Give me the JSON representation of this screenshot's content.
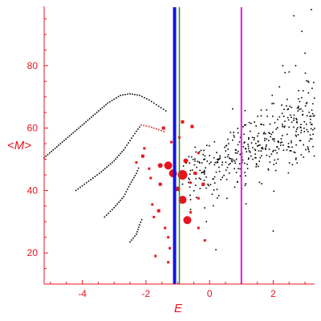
{
  "chart_data": {
    "type": "scatter",
    "xlabel": "E",
    "ylabel": "<M>",
    "xlim": [
      -5.2,
      3.3
    ],
    "ylim": [
      10,
      99
    ],
    "x_ticks": [
      -4,
      -2,
      0,
      2
    ],
    "x_tick_labels": [
      "-4",
      "-2",
      "0",
      "2"
    ],
    "y_ticks": [
      20,
      40,
      60,
      80
    ],
    "y_tick_labels": [
      "20",
      "40",
      "60",
      "80"
    ],
    "grid": false,
    "legend": "none",
    "colors": {
      "axis": "#e8141d",
      "black_points": "#000000",
      "red_points": "#e8141d",
      "line_blue": "#1414e6",
      "line_green": "#2a8a2a",
      "line_magenta": "#e01ce0"
    },
    "vertical_lines": [
      {
        "x": -1.1,
        "color": "#1414e6",
        "width": 4
      },
      {
        "x": -0.95,
        "color": "#2a8a2a",
        "width": 1.5
      },
      {
        "x": 1.0,
        "color": "#e01ce0",
        "width": 2
      }
    ],
    "curves": [
      {
        "color": "#000000",
        "points": [
          [
            -5.2,
            50.5
          ],
          [
            -4.8,
            54
          ],
          [
            -4.4,
            57.5
          ],
          [
            -4.0,
            61
          ],
          [
            -3.6,
            64.5
          ],
          [
            -3.2,
            68
          ],
          [
            -2.8,
            70.5
          ],
          [
            -2.5,
            71
          ],
          [
            -2.2,
            70.5
          ],
          [
            -1.9,
            69
          ],
          [
            -1.6,
            67
          ],
          [
            -1.3,
            65
          ]
        ]
      },
      {
        "color": "#000000",
        "points": [
          [
            -4.2,
            40
          ],
          [
            -3.8,
            43
          ],
          [
            -3.4,
            46
          ],
          [
            -3.0,
            49.5
          ],
          [
            -2.7,
            53
          ],
          [
            -2.5,
            56
          ],
          [
            -2.3,
            59
          ],
          [
            -2.15,
            61
          ]
        ]
      },
      {
        "color": "#e8141d",
        "points": [
          [
            -2.15,
            61
          ],
          [
            -1.9,
            60.5
          ],
          [
            -1.6,
            59.5
          ],
          [
            -1.35,
            58.5
          ]
        ]
      },
      {
        "color": "#000000",
        "points": [
          [
            -3.3,
            31.5
          ],
          [
            -3.0,
            34.5
          ],
          [
            -2.7,
            38
          ],
          [
            -2.5,
            42
          ],
          [
            -2.3,
            45.5
          ],
          [
            -2.2,
            48
          ]
        ]
      },
      {
        "color": "#000000",
        "points": [
          [
            -2.5,
            23.5
          ],
          [
            -2.3,
            26
          ],
          [
            -2.2,
            29
          ],
          [
            -2.1,
            31.5
          ]
        ]
      }
    ],
    "red_points": [
      {
        "x": -1.3,
        "y": 48,
        "r": 5
      },
      {
        "x": -1.15,
        "y": 45.5,
        "r": 5
      },
      {
        "x": -0.85,
        "y": 45,
        "r": 6
      },
      {
        "x": -0.85,
        "y": 37,
        "r": 5
      },
      {
        "x": -0.7,
        "y": 30.5,
        "r": 5
      },
      {
        "x": -1.55,
        "y": 48,
        "r": 3
      },
      {
        "x": -0.75,
        "y": 49.5,
        "r": 3
      },
      {
        "x": -1.0,
        "y": 40.5,
        "r": 3
      },
      {
        "x": -1.55,
        "y": 42,
        "r": 2
      },
      {
        "x": -1.6,
        "y": 33.5,
        "r": 2
      },
      {
        "x": -0.45,
        "y": 45.5,
        "r": 2
      },
      {
        "x": -0.2,
        "y": 42,
        "r": 2
      },
      {
        "x": -0.55,
        "y": 60.5,
        "r": 2
      },
      {
        "x": -2.1,
        "y": 51,
        "r": 2
      },
      {
        "x": -1.45,
        "y": 60,
        "r": 2
      },
      {
        "x": -0.85,
        "y": 62,
        "r": 2
      },
      {
        "x": -1.2,
        "y": 55.5,
        "r": 1.5
      },
      {
        "x": -1.9,
        "y": 47,
        "r": 1.5
      },
      {
        "x": -1.85,
        "y": 44,
        "r": 1.5
      },
      {
        "x": -1.8,
        "y": 35.5,
        "r": 1.5
      },
      {
        "x": -1.75,
        "y": 31.5,
        "r": 1.5
      },
      {
        "x": -1.4,
        "y": 28,
        "r": 1.5
      },
      {
        "x": -1.3,
        "y": 25,
        "r": 1.5
      },
      {
        "x": -1.25,
        "y": 21.5,
        "r": 1.5
      },
      {
        "x": -1.3,
        "y": 17,
        "r": 1.5
      },
      {
        "x": -0.6,
        "y": 33,
        "r": 1.5
      },
      {
        "x": -0.35,
        "y": 28,
        "r": 1.5
      },
      {
        "x": -0.15,
        "y": 24,
        "r": 1.5
      },
      {
        "x": -1.7,
        "y": 19,
        "r": 1.5
      },
      {
        "x": -2.3,
        "y": 49,
        "r": 1.5
      },
      {
        "x": -2.05,
        "y": 53.5,
        "r": 1.5
      },
      {
        "x": -0.35,
        "y": 52,
        "r": 1.5
      },
      {
        "x": -0.95,
        "y": 57,
        "r": 1.5
      },
      {
        "x": -0.35,
        "y": 37.5,
        "r": 1.5
      },
      {
        "x": -0.6,
        "y": 42.5,
        "r": 1.5
      }
    ],
    "black_cloud": {
      "count": 420,
      "x_range": [
        -0.9,
        3.3
      ],
      "trend": {
        "x0": -0.5,
        "y0": 44,
        "x1": 3.0,
        "y1": 63
      },
      "spread": 7,
      "seed": 7
    },
    "black_extra_points": [
      [
        2.65,
        96
      ],
      [
        2.9,
        91
      ],
      [
        3.2,
        98
      ],
      [
        2.3,
        80
      ],
      [
        2.5,
        78
      ],
      [
        3.0,
        84
      ],
      [
        1.1,
        61
      ],
      [
        0.6,
        55
      ],
      [
        -0.1,
        30
      ],
      [
        0.2,
        21
      ],
      [
        2.0,
        27
      ],
      [
        2.8,
        72
      ],
      [
        3.1,
        75
      ]
    ]
  }
}
